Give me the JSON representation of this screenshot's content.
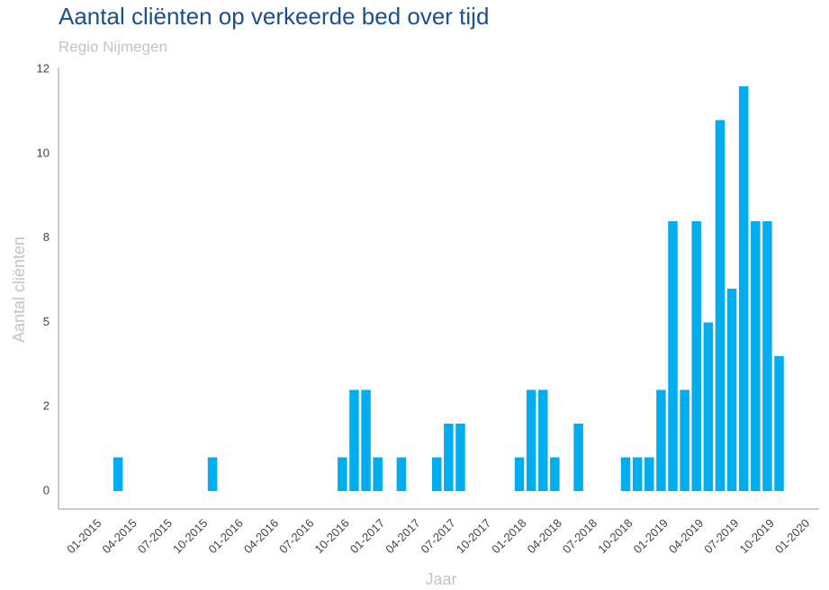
{
  "chart_data": {
    "type": "bar",
    "title": "Aantal cliënten op verkeerde bed over tijd",
    "subtitle": "Regio Nijmegen",
    "x_label": "Jaar",
    "y_label": "Aantal cliënten",
    "x": [
      "03-2015",
      "11-2015",
      "10-2016",
      "11-2016",
      "12-2016",
      "01-2017",
      "03-2017",
      "06-2017",
      "07-2017",
      "08-2017",
      "01-2018",
      "02-2018",
      "03-2018",
      "04-2018",
      "06-2018",
      "10-2018",
      "11-2018",
      "12-2018",
      "01-2019",
      "02-2019",
      "03-2019",
      "04-2019",
      "05-2019",
      "06-2019",
      "07-2019",
      "08-2019",
      "09-2019",
      "10-2019",
      "11-2019"
    ],
    "values": [
      1,
      1,
      1,
      3,
      3,
      1,
      1,
      1,
      2,
      2,
      1,
      3,
      3,
      1,
      2,
      1,
      1,
      1,
      3,
      8,
      3,
      8,
      5,
      11,
      6,
      12,
      8,
      8,
      4
    ],
    "color": "#00aeef",
    "xlim": [
      "10-2014",
      "03-2020"
    ],
    "xticks": [
      "01-2015",
      "04-2015",
      "07-2015",
      "10-2015",
      "01-2016",
      "04-2016",
      "07-2016",
      "10-2016",
      "01-2017",
      "04-2017",
      "07-2017",
      "10-2017",
      "01-2018",
      "04-2018",
      "07-2018",
      "10-2018",
      "01-2019",
      "04-2019",
      "07-2019",
      "10-2019",
      "01-2020"
    ],
    "ylim": [
      -0.5,
      12.6
    ],
    "yticks": [
      0,
      {
        "value": 2.5,
        "label": "2"
      },
      5,
      {
        "value": 7.5,
        "label": "8"
      },
      10,
      {
        "value": 12.5,
        "label": "12"
      }
    ],
    "grid": false
  }
}
